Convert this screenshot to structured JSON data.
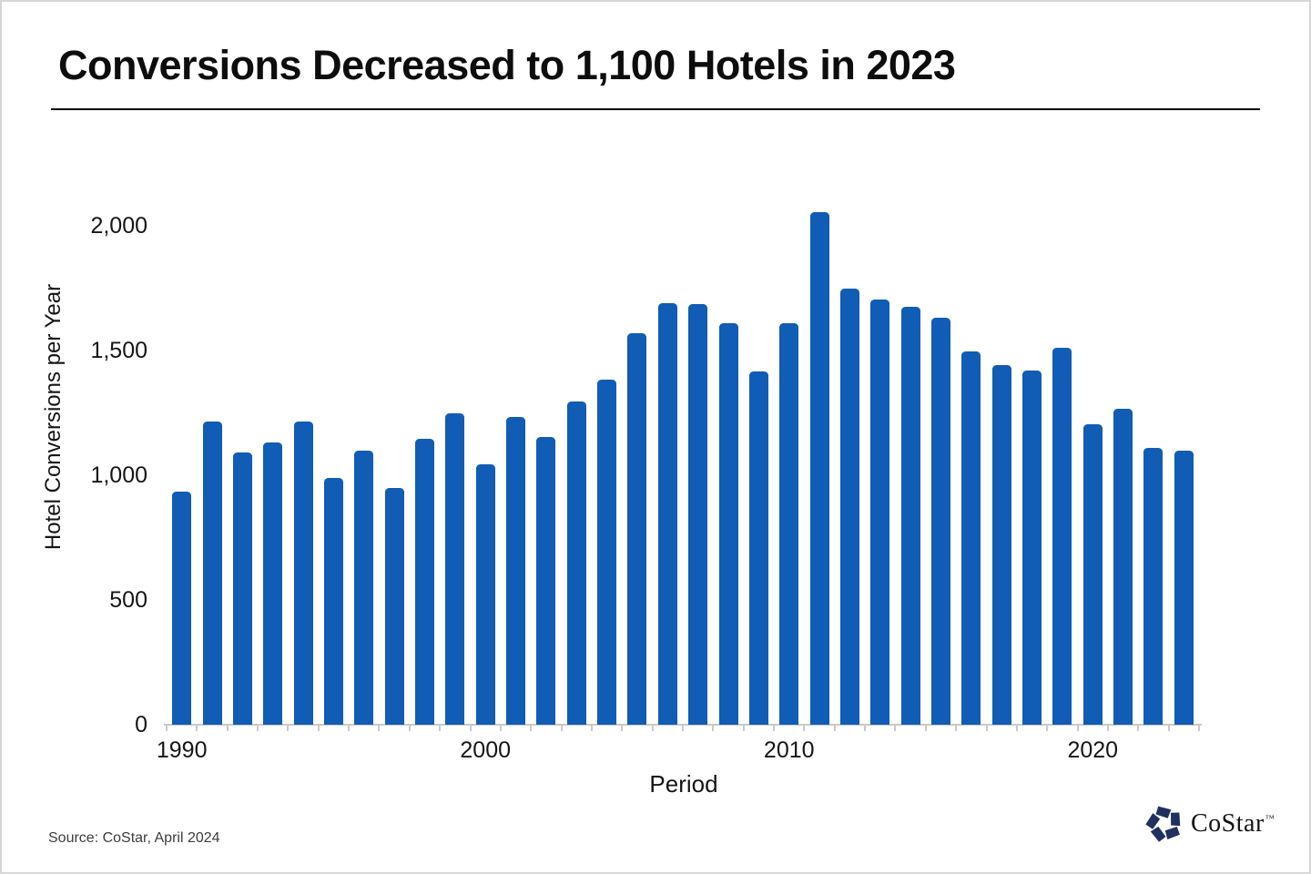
{
  "title": "Conversions Decreased to 1,100 Hotels in 2023",
  "source_note": "Source: CoStar, April 2024",
  "logo": {
    "text": "CoStar",
    "tm": "™",
    "mark_color": "#203060"
  },
  "colors": {
    "bar": "#115cb5",
    "axis": "#c9c9c9",
    "title_rule": "#000000",
    "text": "#151515"
  },
  "chart_data": {
    "type": "bar",
    "title": "Conversions Decreased to 1,100 Hotels in 2023",
    "xlabel": "Period",
    "ylabel": "Hotel Conversions per Year",
    "categories": [
      "1990",
      "1991",
      "1992",
      "1993",
      "1994",
      "1995",
      "1996",
      "1997",
      "1998",
      "1999",
      "2000",
      "2001",
      "2002",
      "2003",
      "2004",
      "2005",
      "2006",
      "2007",
      "2008",
      "2009",
      "2010",
      "2011",
      "2012",
      "2013",
      "2014",
      "2015",
      "2016",
      "2017",
      "2018",
      "2019",
      "2020",
      "2021",
      "2022",
      "2023"
    ],
    "values": [
      935,
      1215,
      1090,
      1130,
      1215,
      990,
      1100,
      950,
      1145,
      1250,
      1045,
      1235,
      1155,
      1295,
      1385,
      1570,
      1690,
      1685,
      1610,
      1415,
      1610,
      2055,
      1750,
      1705,
      1675,
      1630,
      1495,
      1440,
      1420,
      1510,
      1205,
      1265,
      1110,
      1100
    ],
    "bar_color": "#115cb5",
    "ylim": [
      0,
      2100
    ],
    "yticks": [
      0,
      500,
      1000,
      1500,
      2000
    ],
    "ytick_labels": [
      "0",
      "500",
      "1,000",
      "1,500",
      "2,000"
    ],
    "xtick_indices": [
      0,
      10,
      20,
      30
    ],
    "xtick_labels": [
      "1990",
      "2000",
      "2010",
      "2020"
    ],
    "grid": false,
    "legend": false
  }
}
